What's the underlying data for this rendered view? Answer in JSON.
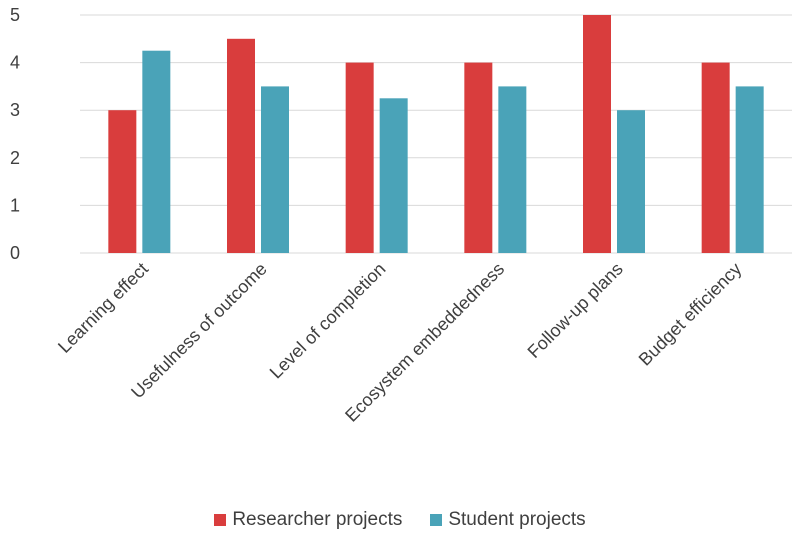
{
  "chart_data": {
    "type": "bar",
    "categories": [
      "Learning effect",
      "Usefulness of outcome",
      "Level of completion",
      "Ecosystem embeddedness",
      "Follow-up plans",
      "Budget efficiency"
    ],
    "series": [
      {
        "name": "Researcher projects",
        "values": [
          3,
          4.5,
          4,
          4,
          5,
          4
        ],
        "color": "#d93d3d"
      },
      {
        "name": "Student projects",
        "values": [
          4.25,
          3.5,
          3.25,
          3.5,
          3,
          3.5
        ],
        "color": "#4aa3b8"
      }
    ],
    "yticks": [
      0,
      1,
      2,
      3,
      4,
      5
    ],
    "ylim": [
      0,
      5
    ],
    "grid": true,
    "legend_position": "bottom"
  }
}
